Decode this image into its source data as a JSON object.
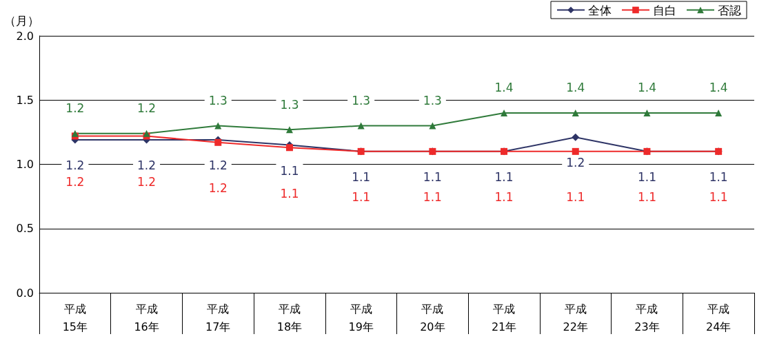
{
  "chart_data": {
    "type": "line",
    "ylabel": "（月）",
    "categories": [
      "平成\n15年",
      "平成\n16年",
      "平成\n17年",
      "平成\n18年",
      "平成\n19年",
      "平成\n20年",
      "平成\n21年",
      "平成\n22年",
      "平成\n23年",
      "平成\n24年"
    ],
    "series": [
      {
        "name": "全体",
        "color": "#2e3466",
        "marker": "diamond",
        "values": [
          1.19,
          1.19,
          1.19,
          1.15,
          1.1,
          1.1,
          1.1,
          1.21,
          1.1,
          1.1
        ],
        "value_labels": [
          "1.2",
          "1.2",
          "1.2",
          "1.1",
          "1.1",
          "1.1",
          "1.1",
          "1.2",
          "1.1",
          "1.1"
        ]
      },
      {
        "name": "自白",
        "color": "#ee2a2a",
        "marker": "square",
        "values": [
          1.22,
          1.22,
          1.17,
          1.13,
          1.1,
          1.1,
          1.1,
          1.1,
          1.1,
          1.1
        ],
        "value_labels": [
          "1.2",
          "1.2",
          "1.2",
          "1.1",
          "1.1",
          "1.1",
          "1.1",
          "1.1",
          "1.1",
          "1.1"
        ]
      },
      {
        "name": "否認",
        "color": "#2f7a3a",
        "marker": "triangle",
        "values": [
          1.24,
          1.24,
          1.3,
          1.27,
          1.3,
          1.3,
          1.4,
          1.4,
          1.4,
          1.4
        ],
        "value_labels": [
          "1.2",
          "1.2",
          "1.3",
          "1.3",
          "1.3",
          "1.3",
          "1.4",
          "1.4",
          "1.4",
          "1.4"
        ]
      }
    ],
    "ylim": [
      0,
      2
    ],
    "yticks": [
      {
        "value": 0,
        "label": "0.0"
      },
      0.5,
      {
        "value": 1,
        "label": "1.0"
      },
      1.5,
      {
        "value": 2,
        "label": "2.0"
      }
    ],
    "grid": "y",
    "legend": "top right",
    "line_style": "solid"
  }
}
